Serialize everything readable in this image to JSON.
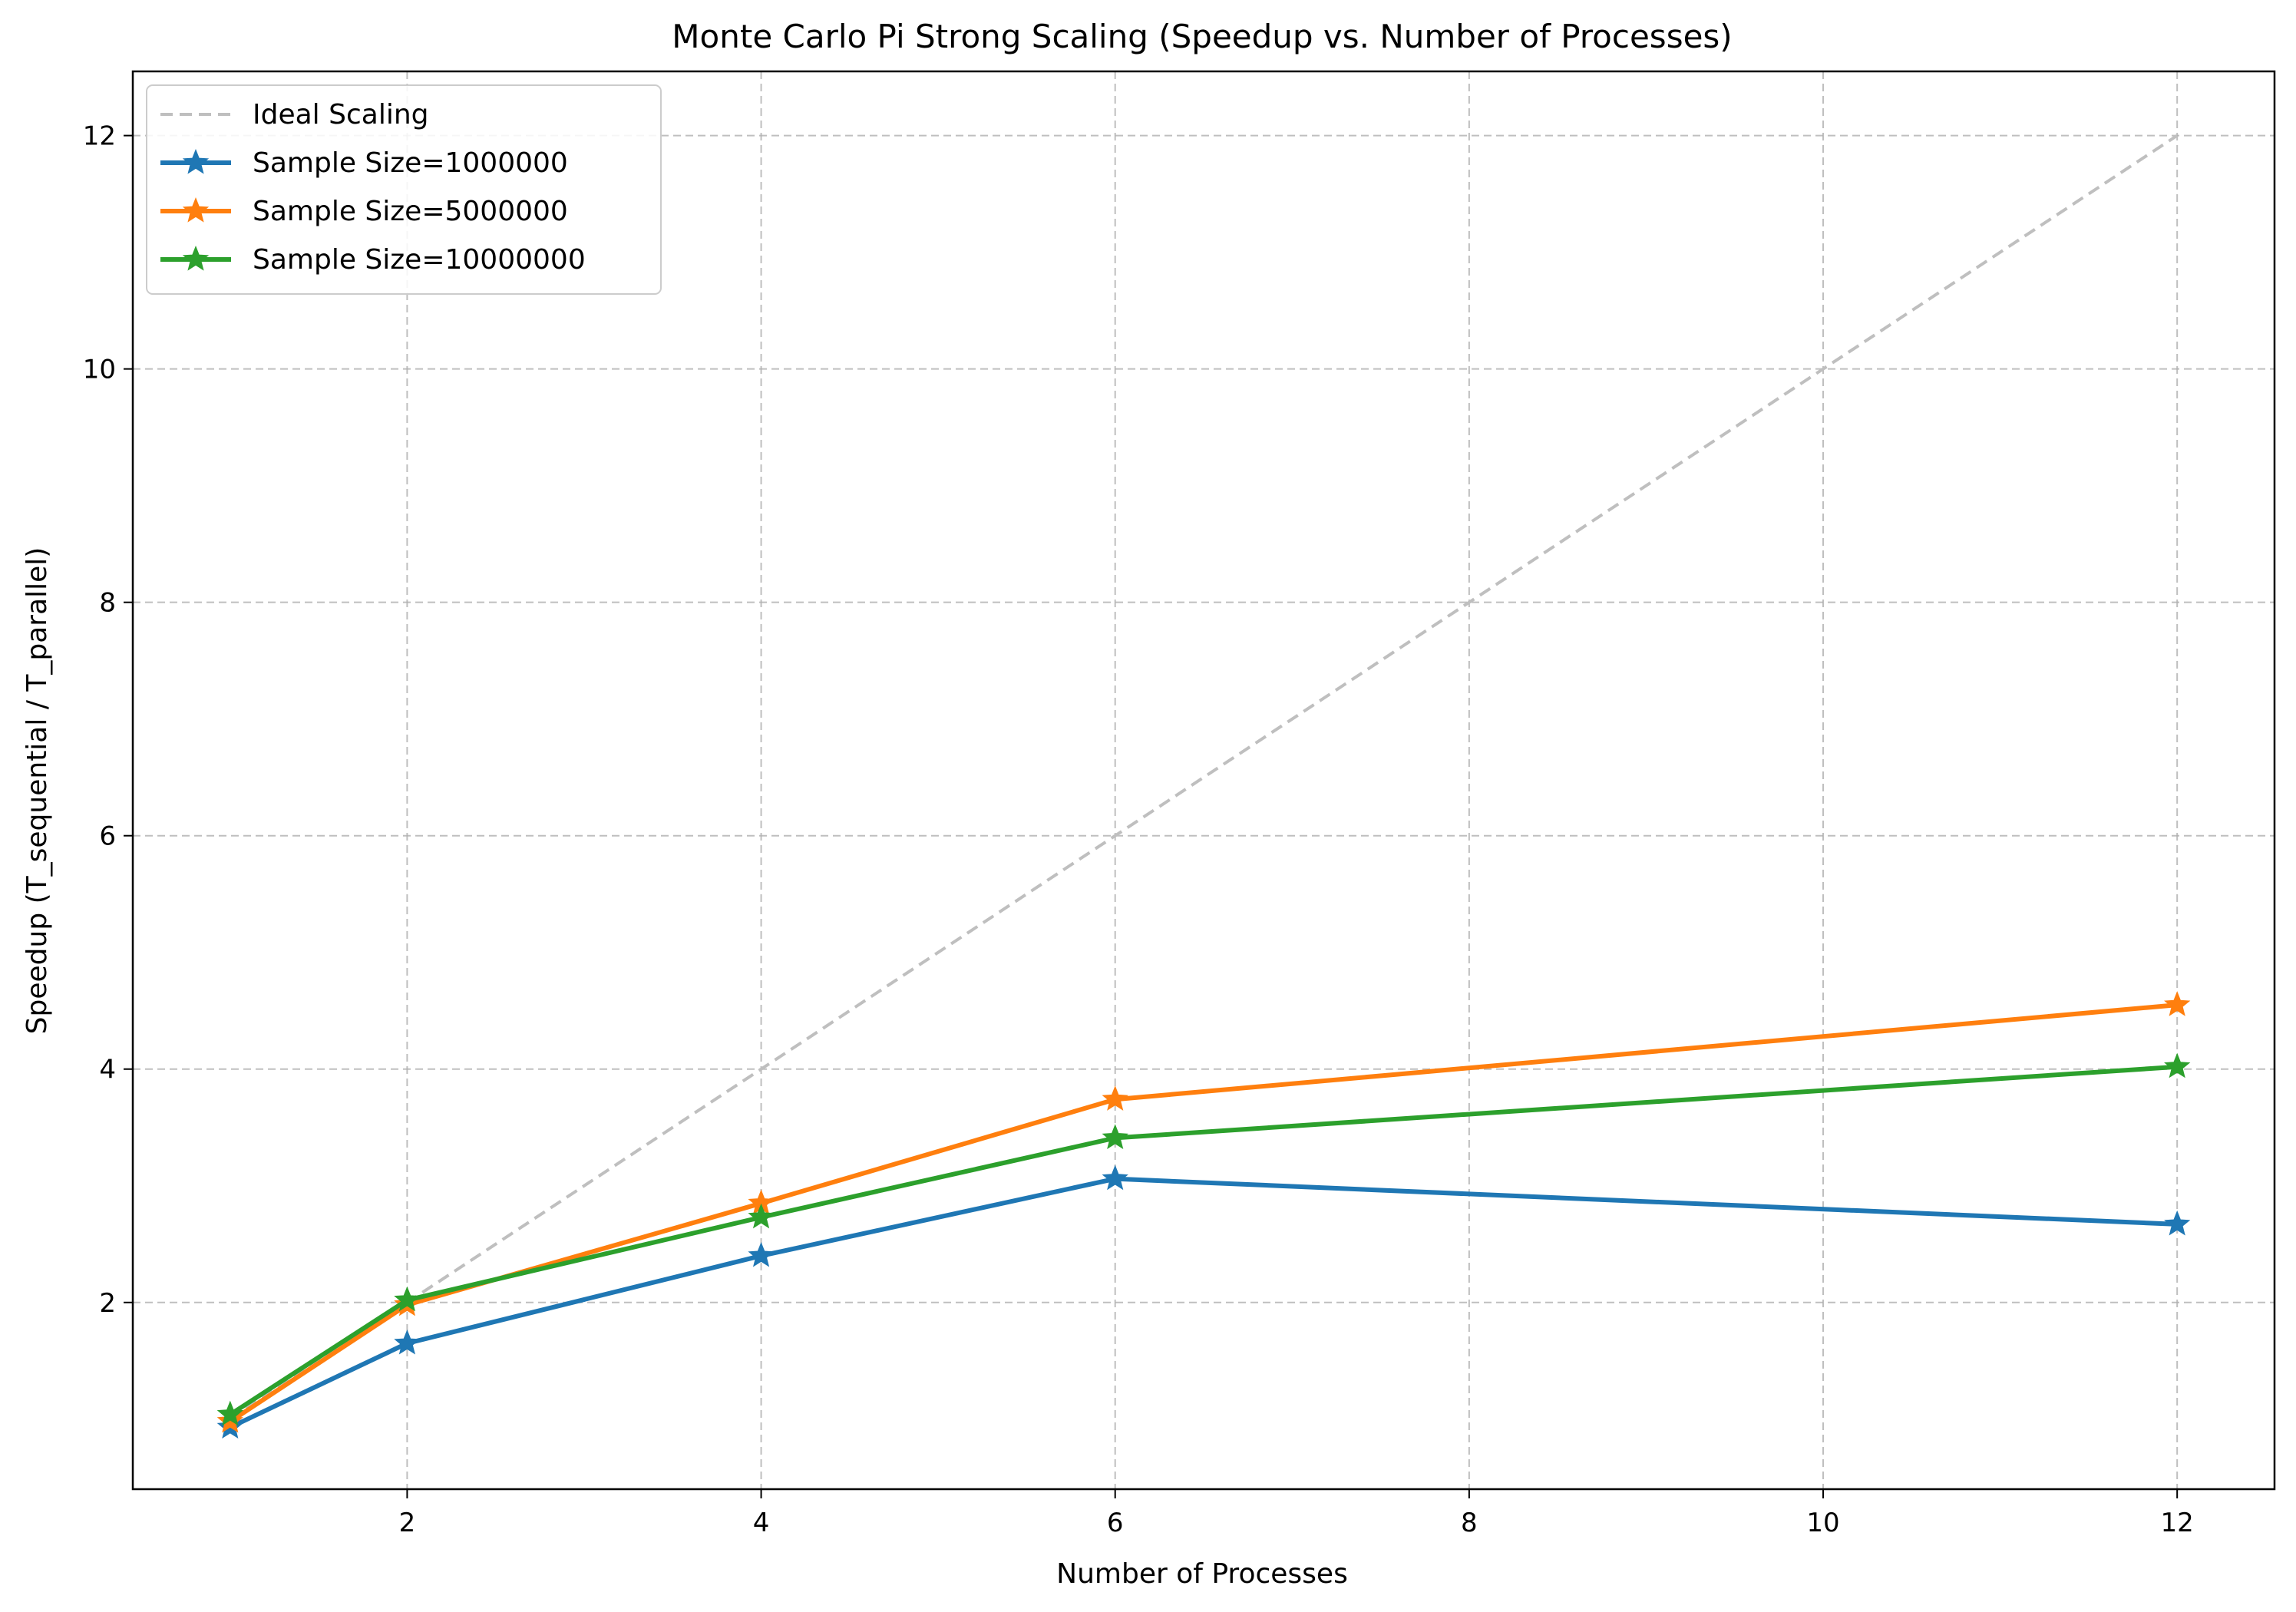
{
  "chart_data": {
    "type": "line",
    "title": "Monte Carlo Pi Strong Scaling (Speedup vs. Number of Processes)",
    "xlabel": "Number of Processes",
    "ylabel": "Speedup (T_sequential / T_parallel)",
    "xlim": [
      0.45,
      12.55
    ],
    "ylim": [
      0.4,
      12.55
    ],
    "xticks": [
      2,
      4,
      6,
      8,
      10,
      12
    ],
    "yticks": [
      2,
      4,
      6,
      8,
      10,
      12
    ],
    "grid": true,
    "legend_position": "top-left",
    "x": [
      1,
      2,
      4,
      6,
      12
    ],
    "ideal": {
      "name": "Ideal Scaling",
      "x": [
        1,
        2,
        4,
        6,
        12
      ],
      "values": [
        1,
        2,
        4,
        6,
        12
      ],
      "color": "#bfbfbf",
      "style": "dashed"
    },
    "series": [
      {
        "name": "Sample Size=1000000",
        "values": [
          0.93,
          1.65,
          2.4,
          3.06,
          2.67
        ],
        "color": "#1f77b4",
        "marker": "star"
      },
      {
        "name": "Sample Size=5000000",
        "values": [
          0.98,
          1.98,
          2.85,
          3.74,
          4.55
        ],
        "color": "#ff7f0e",
        "marker": "star"
      },
      {
        "name": "Sample Size=10000000",
        "values": [
          1.04,
          2.02,
          2.73,
          3.41,
          4.02
        ],
        "color": "#2ca02c",
        "marker": "star"
      }
    ]
  }
}
